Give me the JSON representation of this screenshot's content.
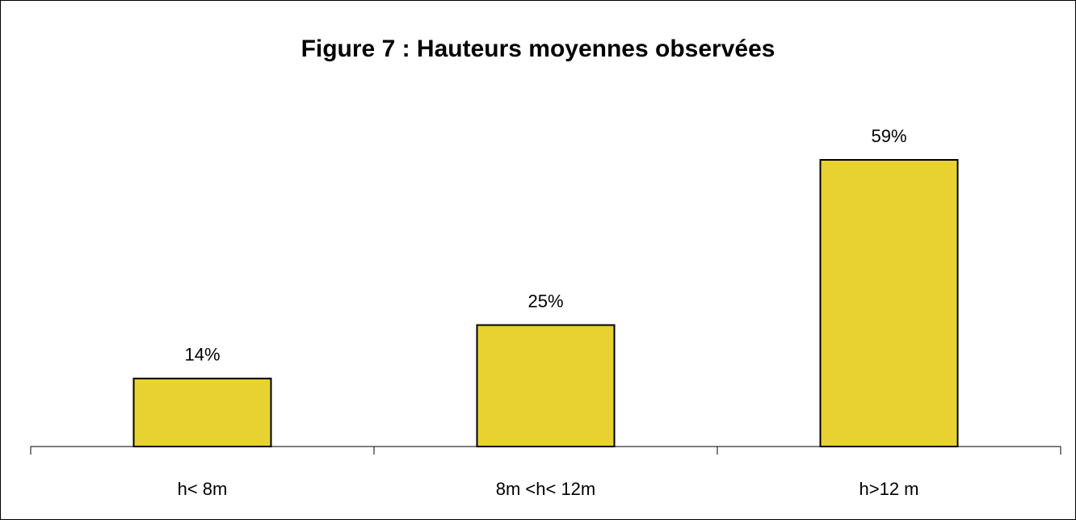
{
  "chart_data": {
    "type": "bar",
    "title": "Figure 7 : Hauteurs moyennes observées",
    "categories": [
      "h< 8m",
      "8m <h< 12m",
      "h>12 m"
    ],
    "values": [
      14,
      25,
      59
    ],
    "value_labels": [
      "14%",
      "25%",
      "59%"
    ],
    "color": "#e8d232"
  }
}
